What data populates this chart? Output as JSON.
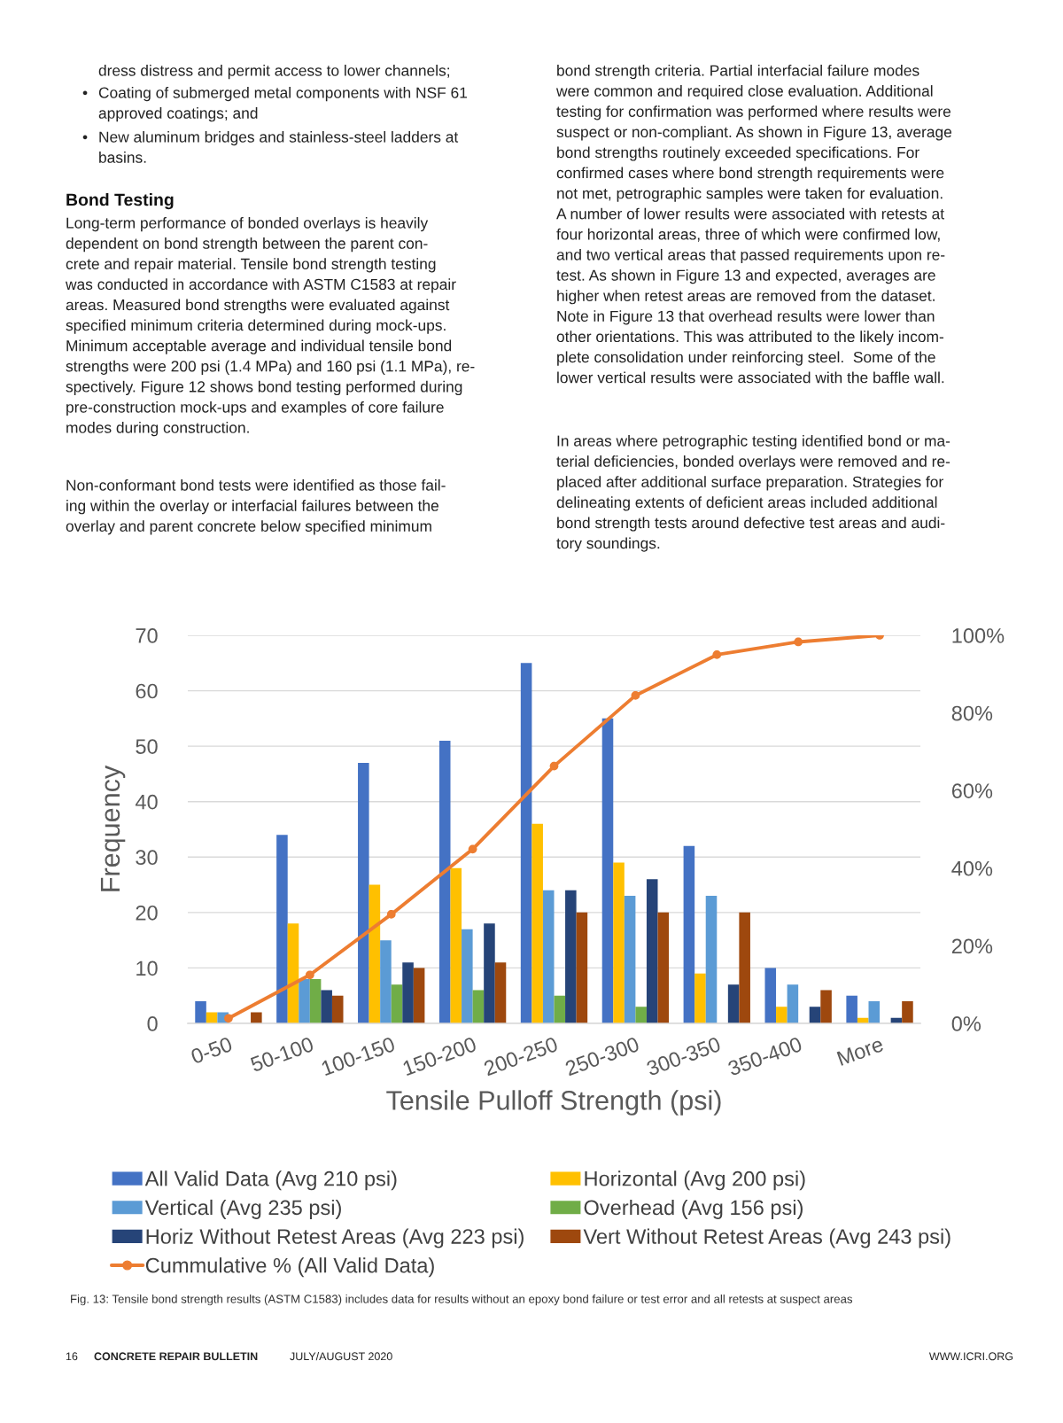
{
  "chart_data": {
    "type": "bar",
    "xlabel": "Tensile Pulloff Strength (psi)",
    "ylabel": "Frequency",
    "categories": [
      "0-50",
      "50-100",
      "100-150",
      "150-200",
      "200-250",
      "250-300",
      "300-350",
      "350-400",
      "More"
    ],
    "series": [
      {
        "name": "All Valid Data (Avg 210 psi)",
        "color": "#4472c4",
        "values": [
          4,
          34,
          47,
          51,
          65,
          55,
          32,
          10,
          5
        ]
      },
      {
        "name": "Horizontal (Avg 200 psi)",
        "color": "#ffc000",
        "values": [
          2,
          18,
          25,
          28,
          36,
          29,
          9,
          3,
          1
        ]
      },
      {
        "name": "Vertical (Avg 235 psi)",
        "color": "#5b9bd5",
        "values": [
          2,
          8,
          15,
          17,
          24,
          23,
          23,
          7,
          4
        ]
      },
      {
        "name": "Overhead (Avg 156 psi)",
        "color": "#70ad47",
        "values": [
          0,
          8,
          7,
          6,
          5,
          3,
          0,
          0,
          0
        ]
      },
      {
        "name": "Horiz Without Retest Areas (Avg 223 psi)",
        "color": "#264478",
        "values": [
          0,
          6,
          11,
          18,
          24,
          26,
          7,
          3,
          1
        ]
      },
      {
        "name": "Vert Without Retest Areas (Avg 243 psi)",
        "color": "#9e480e",
        "values": [
          2,
          5,
          10,
          11,
          20,
          20,
          20,
          6,
          4
        ]
      },
      {
        "name": "Cummulative % (All Valid Data)",
        "color": "#ed7d31",
        "type": "line",
        "axis": "y2",
        "marker": "circle",
        "values": [
          1.3,
          12.5,
          28.1,
          44.9,
          66.3,
          84.5,
          95.0,
          98.3,
          100
        ]
      }
    ],
    "ylim": [
      0,
      70
    ],
    "yticks": [
      0,
      10,
      20,
      30,
      40,
      50,
      60,
      70
    ],
    "y2lim": [
      0,
      100
    ],
    "y2ticks": [
      {
        "value": 0,
        "label": "0%"
      },
      {
        "value": 20,
        "label": "20%"
      },
      {
        "value": 40,
        "label": "40%"
      },
      {
        "value": 60,
        "label": "60%"
      },
      {
        "value": 80,
        "label": "80%"
      },
      {
        "value": 100,
        "label": "100%"
      }
    ],
    "grid": "y",
    "legend": "bottom",
    "annotations": [
      "dress distress and permit access to lower channels;",
      "•",
      "Coating of submerged metal components with NSF 61\napproved coatings; and",
      "•",
      "New aluminum bridges and stainless-steel ladders at\nbasins.",
      "Bond Testing",
      "Long-term performance of bonded overlays is heavily\ndependent on bond strength between the parent con-\ncrete and repair material. Tensile bond strength testing\nwas conducted in accordance with ASTM C1583 at repair\nareas. Measured bond strengths were evaluated against\nspecified minimum criteria determined during mock-ups.\nMinimum acceptable average and individual tensile bond\nstrengths were 200 psi (1.4 MPa) and 160 psi (1.1 MPa), re-\nspectively. Figure 12 shows bond testing performed during\npre-construction mock-ups and examples of core failure\nmodes during construction.",
      "Non-conformant bond tests were identified as those fail-\ning within the overlay or interfacial failures between the\noverlay and parent concrete below specified minimum",
      "bond strength criteria. Partial interfacial failure modes\nwere common and required close evaluation. Additional\ntesting for confirmation was performed where results were\nsuspect or non-compliant. As shown in Figure 13, average\nbond strengths routinely exceeded specifications. For\nconfirmed cases where bond strength requirements were\nnot met, petrographic samples were taken for evaluation.\nA number of lower results were associated with retests at\nfour horizontal areas, three of which were confirmed low,\nand two vertical areas that passed requirements upon re-\ntest. As shown in Figure 13 and expected, averages are\nhigher when retest areas are removed from the dataset.\nNote in Figure 13 that overhead results were lower than\nother orientations. This was attributed to the likely incom-\nplete consolidation under reinforcing steel.  Some of the\nlower vertical results were associated with the baffle wall.",
      "In areas where petrographic testing identified bond or ma-\nterial deficiencies, bonded overlays were removed and re-\nplaced after additional surface preparation. Strategies for\ndelineating extents of deficient areas included additional\nbond strength tests around defective test areas and audi-\ntory soundings.",
      "Fig. 13: Tensile bond strength results (ASTM C1583) includes data for results without an epoxy bond failure or test error and all retests at suspect areas",
      "16",
      "CONCRETE REPAIR BULLETIN",
      "JULY/AUGUST 2020",
      "WWW.ICRI.ORG"
    ]
  }
}
